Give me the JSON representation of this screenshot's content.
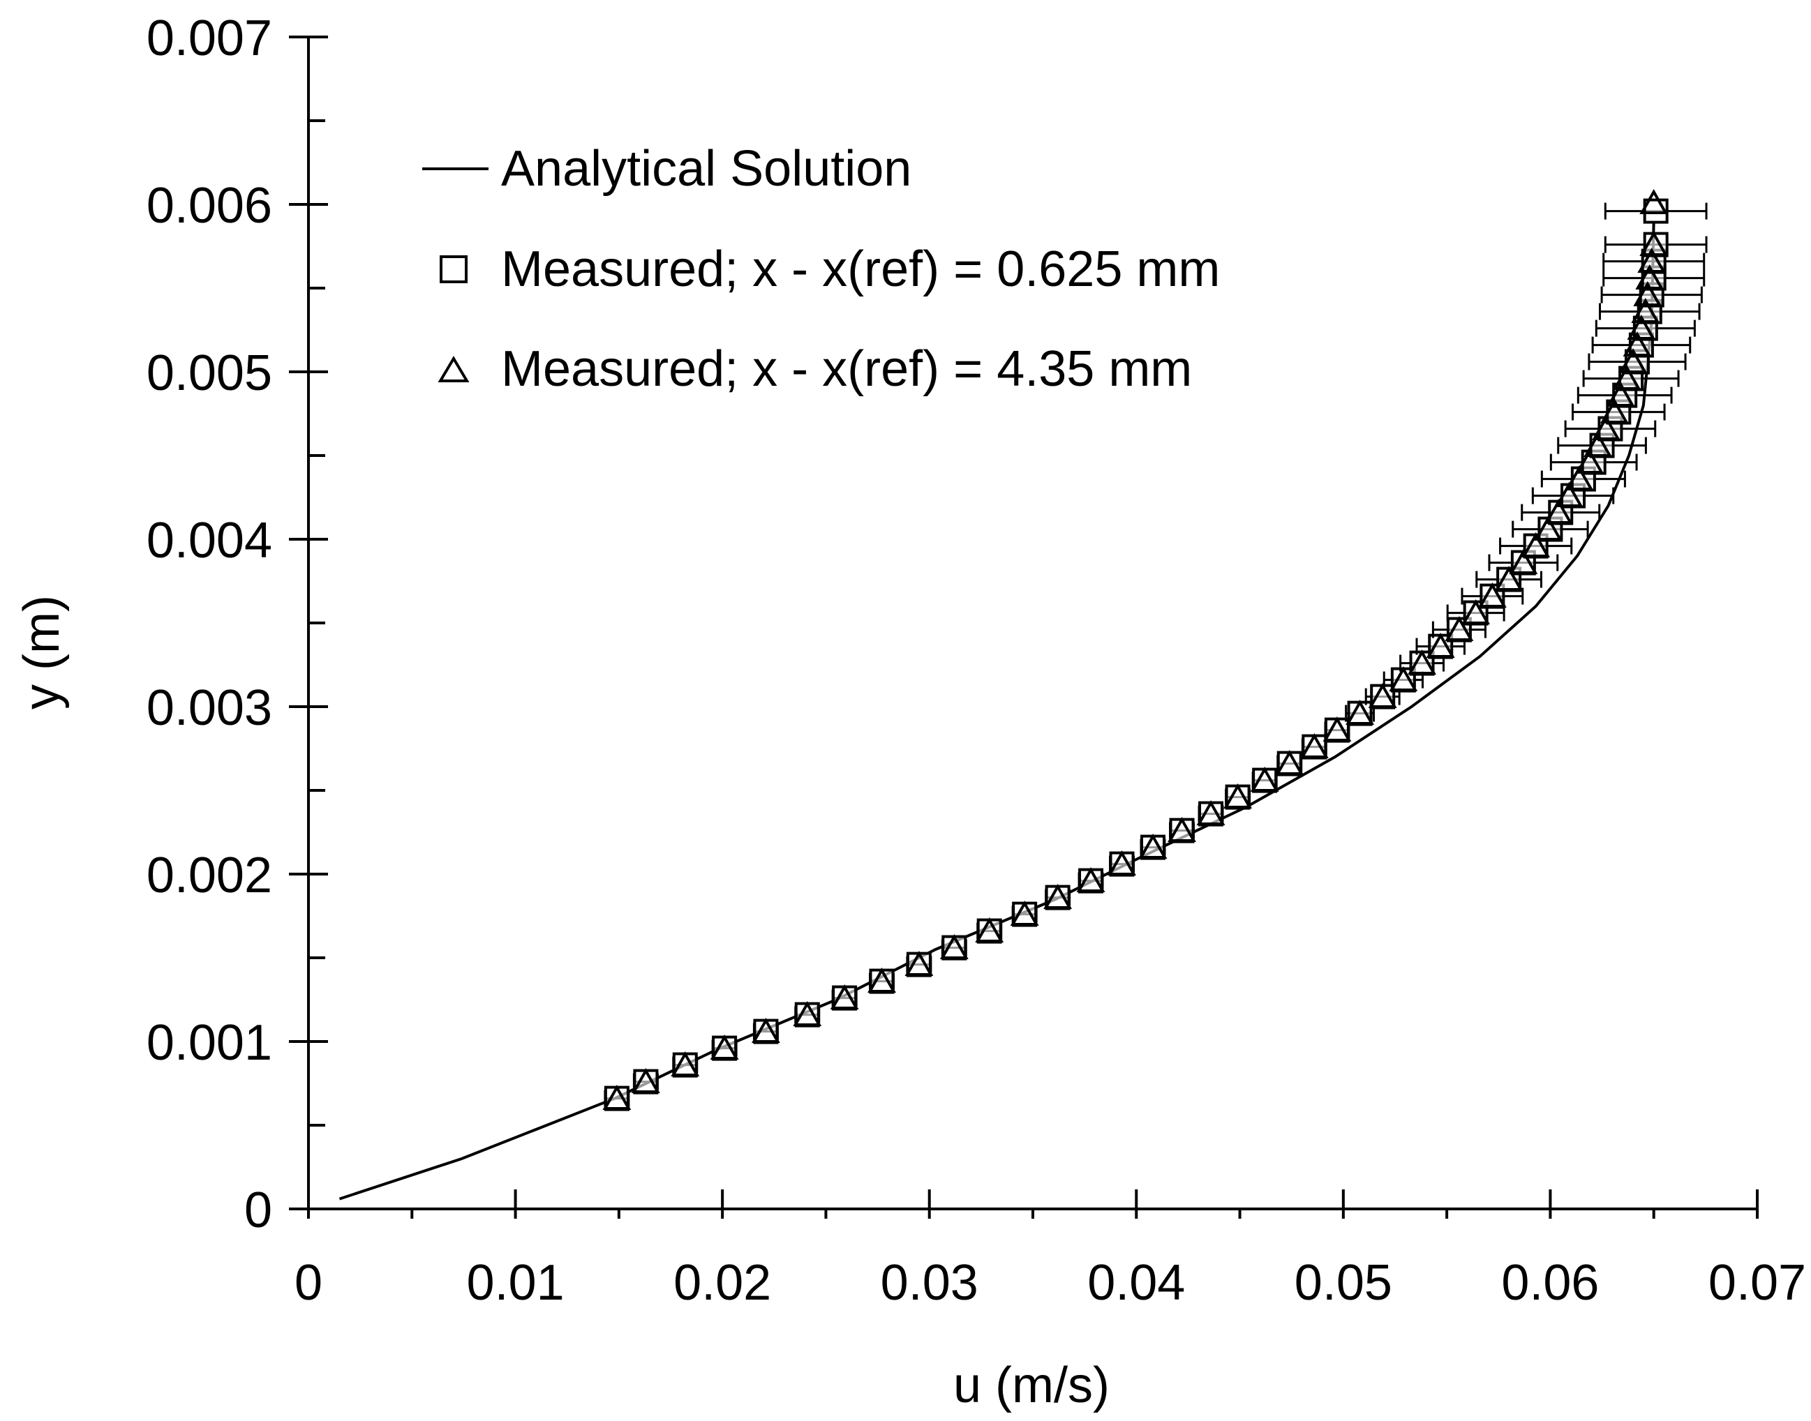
{
  "chart_data": {
    "type": "scatter",
    "title": "",
    "xlabel": "u (m/s)",
    "ylabel": "y (m)",
    "xlim": [
      0,
      0.07
    ],
    "ylim": [
      0,
      0.007
    ],
    "x_ticks": [
      0,
      0.01,
      0.02,
      0.03,
      0.04,
      0.05,
      0.06,
      0.07
    ],
    "x_tick_labels": [
      "0",
      "0.01",
      "0.02",
      "0.03",
      "0.04",
      "0.05",
      "0.06",
      "0.07"
    ],
    "y_ticks": [
      0,
      0.001,
      0.002,
      0.003,
      0.004,
      0.005,
      0.006,
      0.007
    ],
    "y_tick_labels": [
      "0",
      "0.001",
      "0.002",
      "0.003",
      "0.004",
      "0.005",
      "0.006",
      "0.007"
    ],
    "grid": false,
    "legend_position": "top-left",
    "series": [
      {
        "name": "Analytical Solution",
        "kind": "line",
        "marker": "none",
        "x": [
          0.0015,
          0.0074,
          0.0148,
          0.0197,
          0.0255,
          0.0303,
          0.0361,
          0.0402,
          0.0453,
          0.0496,
          0.0533,
          0.0566,
          0.0593,
          0.0613,
          0.0628,
          0.0638,
          0.0645,
          0.0649,
          0.065
        ],
        "y": [
          6e-05,
          0.0003,
          0.00066,
          0.00095,
          0.00125,
          0.00155,
          0.00185,
          0.0021,
          0.0024,
          0.0027,
          0.003,
          0.0033,
          0.0036,
          0.0039,
          0.0042,
          0.0045,
          0.0048,
          0.0053,
          0.0059
        ]
      },
      {
        "name": "Measured; x - x(ref) = 0.625 mm",
        "kind": "scatter",
        "marker": "square",
        "error_bars": true,
        "x": [
          0.0149,
          0.0163,
          0.0182,
          0.0201,
          0.0221,
          0.0241,
          0.0259,
          0.0277,
          0.0295,
          0.0312,
          0.0329,
          0.0346,
          0.0362,
          0.0378,
          0.0393,
          0.0408,
          0.0422,
          0.0436,
          0.0449,
          0.0462,
          0.0474,
          0.0486,
          0.0497,
          0.0508,
          0.0519,
          0.0529,
          0.0538,
          0.0547,
          0.0556,
          0.0564,
          0.0572,
          0.058,
          0.0587,
          0.0593,
          0.06,
          0.0605,
          0.0611,
          0.0616,
          0.0621,
          0.0625,
          0.0629,
          0.0633,
          0.0636,
          0.0639,
          0.0642,
          0.0644,
          0.0646,
          0.0648,
          0.0649,
          0.065,
          0.065,
          0.0651,
          0.0651
        ],
        "y": [
          0.00066,
          0.00076,
          0.00086,
          0.00096,
          0.00106,
          0.00116,
          0.00126,
          0.00136,
          0.00146,
          0.00156,
          0.00166,
          0.00176,
          0.00186,
          0.00196,
          0.00206,
          0.00216,
          0.00226,
          0.00236,
          0.00246,
          0.00256,
          0.00266,
          0.00276,
          0.00286,
          0.00296,
          0.00306,
          0.00316,
          0.00326,
          0.00336,
          0.00346,
          0.00356,
          0.00366,
          0.00376,
          0.00386,
          0.00396,
          0.00406,
          0.00416,
          0.00426,
          0.00436,
          0.00446,
          0.00456,
          0.00466,
          0.00476,
          0.00486,
          0.00496,
          0.00506,
          0.00516,
          0.00526,
          0.00536,
          0.00546,
          0.00556,
          0.00566,
          0.00576,
          0.00596
        ]
      },
      {
        "name": "Measured; x - x(ref) = 4.35 mm",
        "kind": "scatter",
        "marker": "triangle",
        "x": [
          0.0149,
          0.0163,
          0.0182,
          0.0201,
          0.0221,
          0.0241,
          0.0259,
          0.0277,
          0.0295,
          0.0312,
          0.0329,
          0.0346,
          0.0362,
          0.0378,
          0.0393,
          0.0408,
          0.0422,
          0.0436,
          0.0449,
          0.0462,
          0.0474,
          0.0486,
          0.0497,
          0.0508,
          0.0519,
          0.0529,
          0.0538,
          0.0547,
          0.0556,
          0.0564,
          0.0572,
          0.058,
          0.0587,
          0.0593,
          0.0599,
          0.0604,
          0.0609,
          0.0614,
          0.0619,
          0.0623,
          0.0627,
          0.0631,
          0.0634,
          0.0637,
          0.064,
          0.0642,
          0.0644,
          0.0646,
          0.0647,
          0.0648,
          0.0649,
          0.065,
          0.065
        ],
        "y": [
          0.00065,
          0.00075,
          0.00085,
          0.00095,
          0.00105,
          0.00115,
          0.00125,
          0.00135,
          0.00145,
          0.00155,
          0.00165,
          0.00175,
          0.00185,
          0.00195,
          0.00205,
          0.00215,
          0.00225,
          0.00235,
          0.00245,
          0.00255,
          0.00265,
          0.00275,
          0.00285,
          0.00295,
          0.00305,
          0.00315,
          0.00325,
          0.00335,
          0.00345,
          0.00355,
          0.00365,
          0.00375,
          0.00385,
          0.00395,
          0.00405,
          0.00415,
          0.00425,
          0.00435,
          0.00445,
          0.00455,
          0.00465,
          0.00475,
          0.00485,
          0.00495,
          0.00505,
          0.00515,
          0.00525,
          0.00535,
          0.00545,
          0.00555,
          0.00565,
          0.00575,
          0.006
        ]
      }
    ]
  }
}
